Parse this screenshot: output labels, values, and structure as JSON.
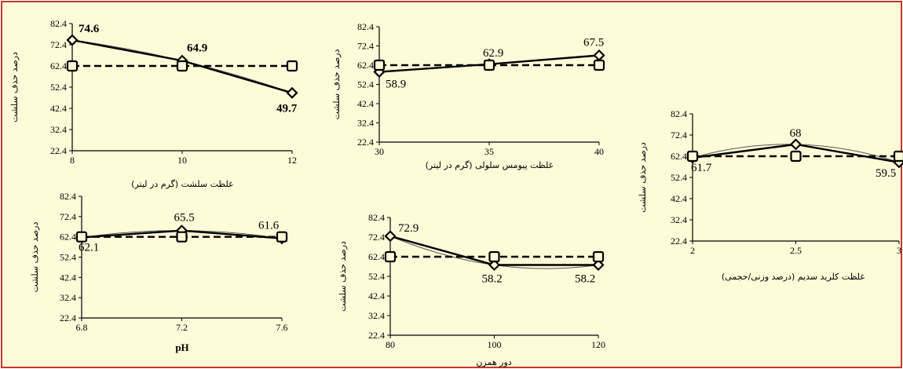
{
  "chart_data": [
    {
      "type": "line",
      "x": [
        8,
        10,
        12
      ],
      "xlim": [
        8,
        12
      ],
      "ylim": [
        22.4,
        82.4
      ],
      "yticks": [
        "22.4",
        "32.4",
        "42.4",
        "52.4",
        "62.4",
        "72.4",
        "82.4"
      ],
      "xticks": [
        "8",
        "10",
        "12"
      ],
      "xlabel": "غلظت سلشت (گرم در لیتر)",
      "ylabel": "درصد حذف سلشت",
      "series": [
        {
          "values": [
            74.6,
            64.9,
            49.7
          ],
          "labels": [
            "74.6",
            "64.9",
            "49.7"
          ],
          "marker": "diamond",
          "style": "solid",
          "color": "#000000"
        },
        {
          "values": [
            62.4,
            62.4,
            62.4
          ],
          "marker": "square",
          "style": "dashed",
          "color": "#000000"
        }
      ],
      "label_bold": true
    },
    {
      "type": "line",
      "x": [
        30,
        35,
        40
      ],
      "xlim": [
        30,
        40
      ],
      "ylim": [
        22.4,
        82.4
      ],
      "yticks": [
        "22.4",
        "32.4",
        "42.4",
        "52.4",
        "62.4",
        "72.4",
        "82.4"
      ],
      "xticks": [
        "30",
        "35",
        "40"
      ],
      "xlabel": "غلظت پیومس سلولی (گرم در لیتر)",
      "ylabel": "درصد حذف سلشت",
      "series": [
        {
          "values": [
            58.9,
            62.9,
            67.5
          ],
          "labels": [
            "58.9",
            "62.9",
            "67.5"
          ],
          "marker": "diamond",
          "style": "solid",
          "color": "#000000"
        },
        {
          "values": [
            62.4,
            62.4,
            62.4
          ],
          "marker": "square",
          "style": "dashed",
          "color": "#000000"
        }
      ]
    },
    {
      "type": "line",
      "x": [
        2,
        2.5,
        3
      ],
      "xlim": [
        2,
        3
      ],
      "ylim": [
        22.4,
        82.4
      ],
      "yticks": [
        "22.4",
        "32.4",
        "42.4",
        "52.4",
        "62.4",
        "72.4",
        "82.4"
      ],
      "xticks": [
        "2",
        "2.5",
        "3"
      ],
      "xlabel": "غلظت کلرید سدیم (درصد وزنی/حجمی)",
      "ylabel": "درصد حذف سلشت",
      "series": [
        {
          "values": [
            61.7,
            68,
            59.5
          ],
          "labels": [
            "61.7",
            "68",
            "59.5"
          ],
          "marker": "diamond",
          "style": "solid",
          "color": "#000000"
        },
        {
          "values": [
            62.4,
            62.4,
            62.4
          ],
          "marker": "square",
          "style": "dashed",
          "color": "#000000"
        }
      ]
    },
    {
      "type": "line",
      "x": [
        6.8,
        7.2,
        7.6
      ],
      "xlim": [
        6.8,
        7.6
      ],
      "ylim": [
        22.4,
        82.4
      ],
      "yticks": [
        "22.4",
        "32.4",
        "42.4",
        "52.4",
        "62.4",
        "72.4",
        "82.4"
      ],
      "xticks": [
        "6.8",
        "7.2",
        "7.6"
      ],
      "xlabel": "pH",
      "ylabel": "درصد حذف سلشت",
      "series": [
        {
          "values": [
            62.1,
            65.5,
            61.6
          ],
          "labels": [
            "62.1",
            "65.5",
            "61.6"
          ],
          "marker": "diamond",
          "style": "solid",
          "color": "#000000"
        },
        {
          "values": [
            62.4,
            62.4,
            62.4
          ],
          "marker": "square",
          "style": "dashed",
          "color": "#000000"
        }
      ]
    },
    {
      "type": "line",
      "x": [
        80,
        100,
        120
      ],
      "xlim": [
        80,
        120
      ],
      "ylim": [
        22.4,
        82.4
      ],
      "yticks": [
        "22.4",
        "32.4",
        "42.4",
        "52.4",
        "62.4",
        "72.4",
        "82.4"
      ],
      "xticks": [
        "80",
        "100",
        "120"
      ],
      "xlabel": "دور همزن",
      "ylabel": "درصد حذف سلشت",
      "series": [
        {
          "values": [
            72.9,
            58.2,
            58.2
          ],
          "labels": [
            "72.9",
            "58.2",
            "58.2"
          ],
          "marker": "diamond",
          "style": "solid",
          "color": "#000000"
        },
        {
          "values": [
            62.4,
            62.4,
            62.4
          ],
          "marker": "square",
          "style": "dashed",
          "color": "#000000"
        }
      ]
    }
  ]
}
